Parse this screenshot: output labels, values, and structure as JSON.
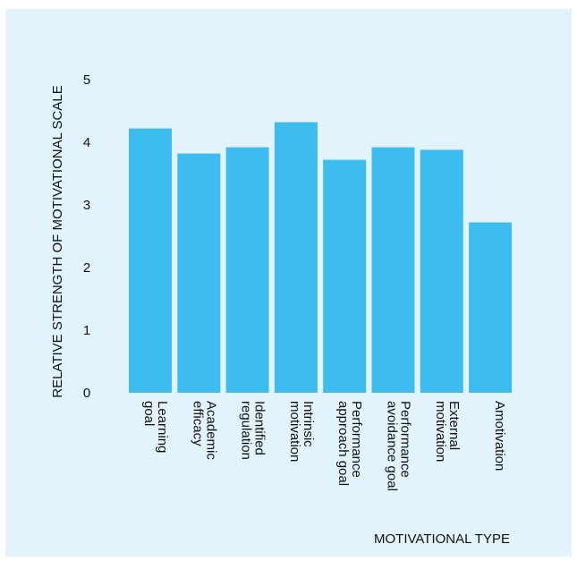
{
  "chart_data": {
    "type": "bar",
    "categories": [
      [
        "Learning",
        "goal"
      ],
      [
        "Academic",
        "efficacy"
      ],
      [
        "Identified",
        "regulation"
      ],
      [
        "Intrinsic",
        "motivation"
      ],
      [
        "Performance",
        "approach goal"
      ],
      [
        "Performance",
        "avoidance goal"
      ],
      [
        "External",
        "motivation"
      ],
      [
        "Amotivation"
      ]
    ],
    "values": [
      4.22,
      3.82,
      3.92,
      4.32,
      3.72,
      3.92,
      3.88,
      2.72
    ],
    "ylim": [
      0,
      5
    ],
    "yticks": [
      0,
      1,
      2,
      3,
      4,
      5
    ],
    "ylabel": "RELATIVE STRENGTH OF MOTIVATIONAL SCALE",
    "xlabel": "MOTIVATIONAL TYPE",
    "grid": false,
    "legend": "none",
    "colors": {
      "bar": "#3dbcf0",
      "background": "#e3f3fb"
    }
  }
}
